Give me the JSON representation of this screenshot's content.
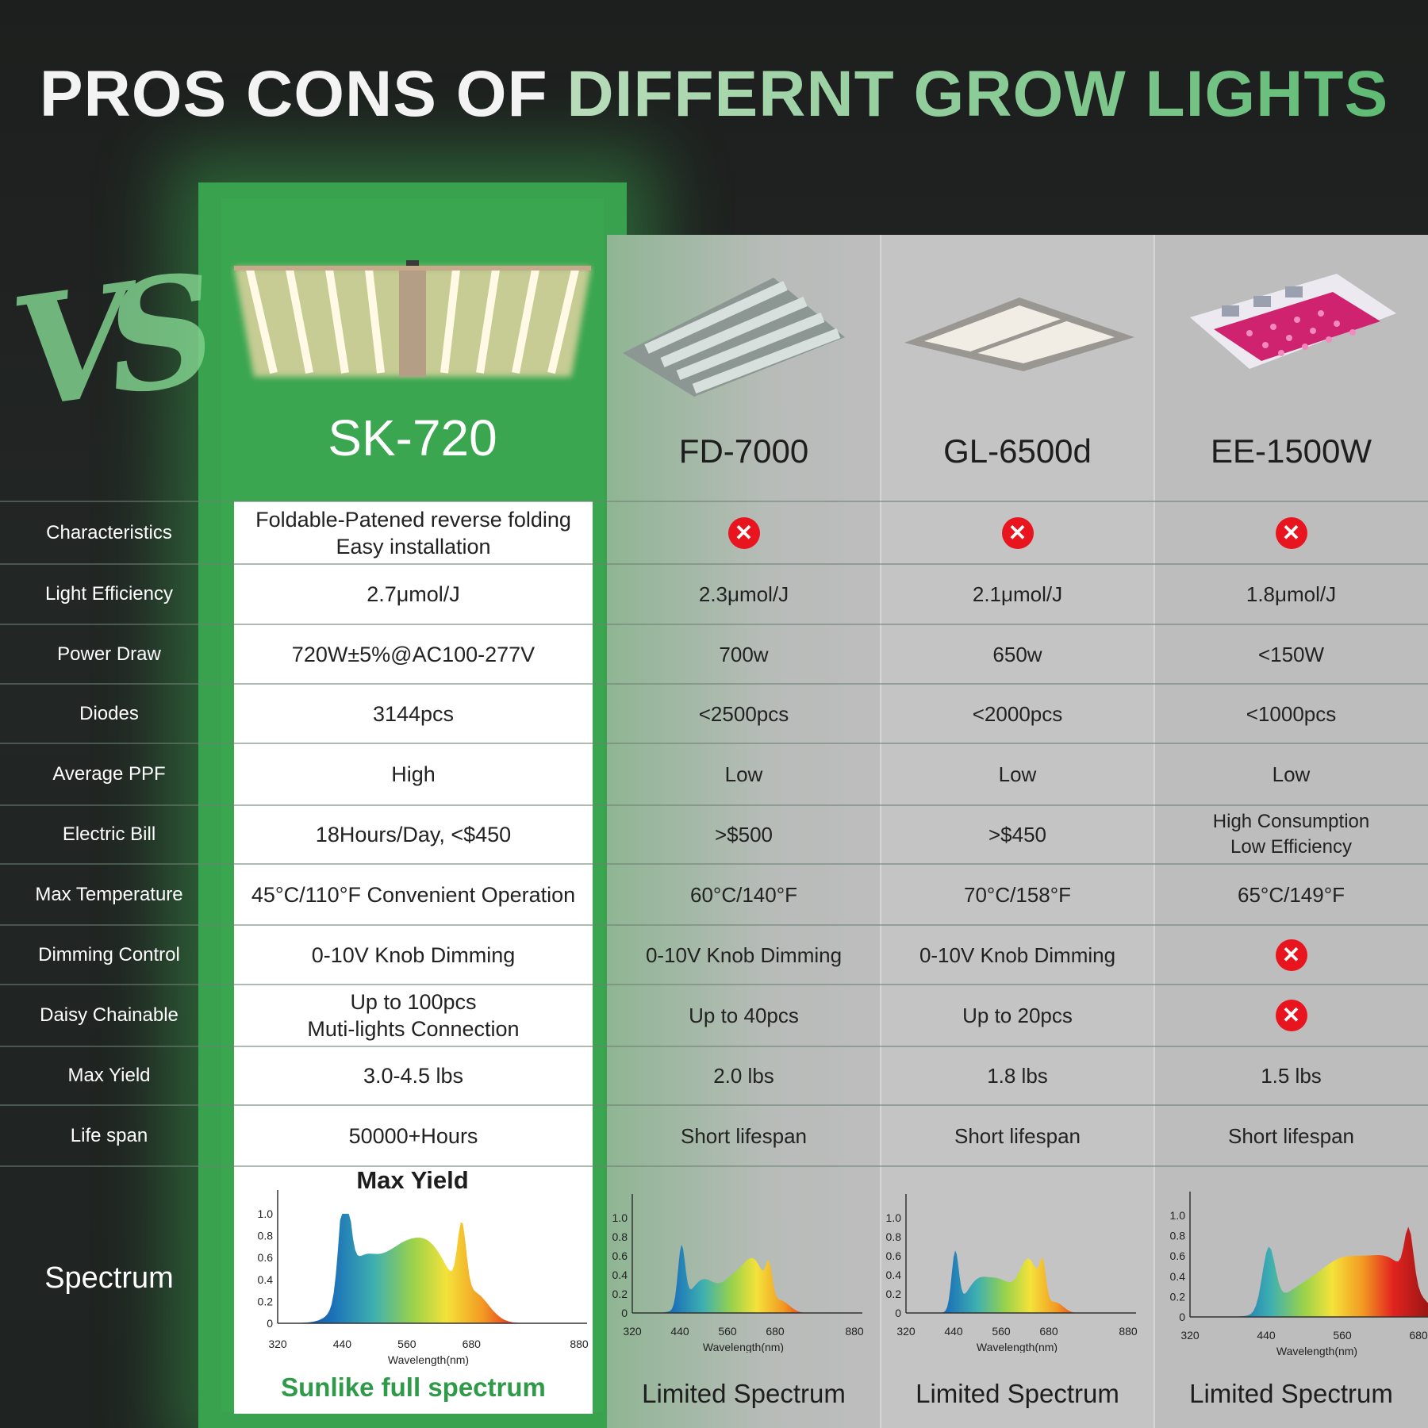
{
  "title": {
    "part1": "PROS CONS OF ",
    "part2": "DIFFERNT GROW LIGHTS"
  },
  "vs_logo": "VS",
  "models": {
    "sk": "SK-720",
    "fd": "FD-7000",
    "gl": "GL-6500d",
    "ee": "EE-1500W"
  },
  "rows": [
    {
      "label": "Characteristics",
      "sk": [
        "Foldable-Patened reverse folding",
        "Easy installation"
      ],
      "fd": "x",
      "gl": "x",
      "ee": "x"
    },
    {
      "label": "Light Efficiency",
      "sk": [
        "2.7μmol/J"
      ],
      "fd": "2.3μmol/J",
      "gl": "2.1μmol/J",
      "ee": "1.8μmol/J"
    },
    {
      "label": "Power Draw",
      "sk": [
        "720W±5%@AC100-277V"
      ],
      "fd": "700w",
      "gl": "650w",
      "ee": "<150W"
    },
    {
      "label": "Diodes",
      "sk": [
        "3144pcs"
      ],
      "fd": "<2500pcs",
      "gl": "<2000pcs",
      "ee": "<1000pcs"
    },
    {
      "label": "Average PPF",
      "sk": [
        "High"
      ],
      "fd": "Low",
      "gl": "Low",
      "ee": "Low"
    },
    {
      "label": "Electric Bill",
      "sk": [
        "18Hours/Day, <$450"
      ],
      "fd": ">$500",
      "gl": ">$450",
      "ee": "High Consumption\nLow Efficiency"
    },
    {
      "label": "Max Temperature",
      "sk": [
        "45°C/110°F  Convenient Operation"
      ],
      "fd": "60°C/140°F",
      "gl": "70°C/158°F",
      "ee": "65°C/149°F"
    },
    {
      "label": "Dimming Control",
      "sk": [
        "0-10V Knob Dimming"
      ],
      "fd": "0-10V Knob Dimming",
      "gl": "0-10V Knob Dimming",
      "ee": "x"
    },
    {
      "label": "Daisy Chainable",
      "sk": [
        "Up to 100pcs",
        "Muti-lights Connection"
      ],
      "fd": "Up to 40pcs",
      "gl": "Up to 20pcs",
      "ee": "x"
    },
    {
      "label": "Max Yield",
      "sk": [
        "3.0-4.5 lbs"
      ],
      "fd": "2.0 lbs",
      "gl": "1.8 lbs",
      "ee": "1.5 lbs"
    },
    {
      "label": "Life span",
      "sk": [
        "50000+Hours"
      ],
      "fd": "Short lifespan",
      "gl": "Short lifespan",
      "ee": "Short lifespan"
    }
  ],
  "spectrum": {
    "label": "Spectrum",
    "sk_title": "Max Yield",
    "sk_caption": "Sunlike full spectrum",
    "other_caption": "Limited Spectrum",
    "xlabel": "Wavelength(nm)",
    "yticks": [
      "0",
      "0.2",
      "0.4",
      "0.6",
      "0.8",
      "1.0"
    ],
    "xticks_full": [
      "320",
      "440",
      "560",
      "680",
      "880"
    ],
    "xticks_ee": [
      "320",
      "440",
      "560",
      "680"
    ]
  },
  "colors": {
    "brand_green": "#3aa650",
    "x_red": "#e8141e"
  }
}
